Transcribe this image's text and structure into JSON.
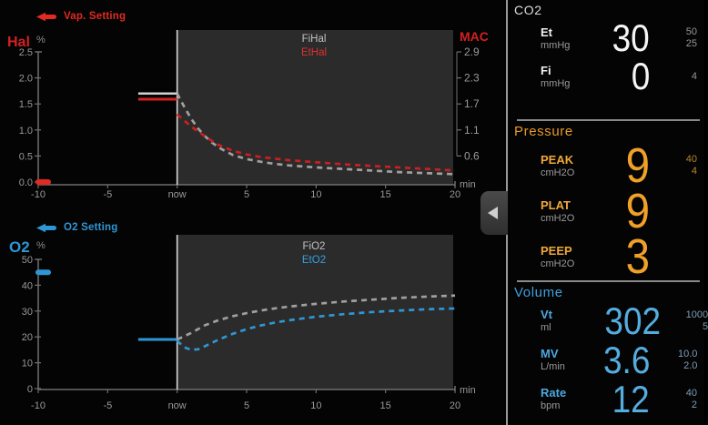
{
  "colors": {
    "red_accent": "#d42020",
    "blue_accent": "#2f96d4",
    "orange_accent": "#f0a028",
    "white_value": "#f5f5f5",
    "gray_trace": "#aaaaaa",
    "tick_text": "#999999",
    "shade_bg": "#2b2b2b",
    "now_line": "#d8d8d8"
  },
  "chart_data": [
    {
      "type": "line",
      "setting_label": "Vap. Setting",
      "gas_label": "Hal",
      "percent_label": "%",
      "x_unit": "min",
      "x_min": -10,
      "x_max": 20,
      "y_min": 0,
      "y_max": 2.5,
      "x_tick_values": [
        -10,
        -5,
        0,
        5,
        10,
        15,
        20
      ],
      "x_tick_labels": [
        "-10",
        "-5",
        "now",
        "5",
        "10",
        "15",
        "20"
      ],
      "y_tick_values": [
        2.5,
        2.0,
        1.5,
        1.0,
        0.5,
        0.0
      ],
      "y_tick_labels": [
        "2.5",
        "2.0",
        "1.5",
        "1.0",
        "0.5",
        "0.0"
      ],
      "right_axis_label": "MAC",
      "right_axis_tick_labels": [
        "2.9",
        "2.3",
        "1.7",
        "1.1",
        "0.6"
      ],
      "legend": [
        {
          "text": "FiHal",
          "color": "#c0c0c0"
        },
        {
          "text": "EtHal",
          "color": "#e03030"
        }
      ],
      "setting_value": 0.0,
      "setting_color": "#e02a22",
      "history": [
        {
          "name": "FiHal",
          "color": "#d0d0d0",
          "width": 2.4,
          "points": [
            [
              -2.8,
              1.7
            ],
            [
              0,
              1.7
            ]
          ]
        },
        {
          "name": "EtHal",
          "color": "#d42020",
          "width": 3,
          "points": [
            [
              -2.8,
              1.59
            ],
            [
              0,
              1.59
            ]
          ]
        }
      ],
      "forecast": [
        {
          "name": "FiHal",
          "color": "#a0a0a0",
          "points": [
            [
              0,
              1.7
            ],
            [
              0.5,
              1.45
            ],
            [
              1,
              1.22
            ],
            [
              1.5,
              1.03
            ],
            [
              2,
              0.88
            ],
            [
              2.5,
              0.76
            ],
            [
              3,
              0.66
            ],
            [
              4,
              0.52
            ],
            [
              5,
              0.44
            ],
            [
              6,
              0.39
            ],
            [
              7,
              0.35
            ],
            [
              8,
              0.32
            ],
            [
              10,
              0.28
            ],
            [
              12,
              0.25
            ],
            [
              14,
              0.22
            ],
            [
              16,
              0.19
            ],
            [
              18,
              0.17
            ],
            [
              20,
              0.15
            ]
          ]
        },
        {
          "name": "EtHal",
          "color": "#cc1f1f",
          "points": [
            [
              0,
              1.3
            ],
            [
              0.5,
              1.18
            ],
            [
              1,
              1.07
            ],
            [
              1.5,
              0.97
            ],
            [
              2,
              0.88
            ],
            [
              2.5,
              0.79
            ],
            [
              3,
              0.71
            ],
            [
              4,
              0.6
            ],
            [
              5,
              0.53
            ],
            [
              6,
              0.48
            ],
            [
              7,
              0.45
            ],
            [
              8,
              0.42
            ],
            [
              10,
              0.38
            ],
            [
              12,
              0.34
            ],
            [
              14,
              0.31
            ],
            [
              16,
              0.28
            ],
            [
              18,
              0.25
            ],
            [
              20,
              0.22
            ]
          ]
        }
      ]
    },
    {
      "type": "line",
      "setting_label": "O2 Setting",
      "gas_label": "O2",
      "percent_label": "%",
      "x_unit": "min",
      "x_min": -10,
      "x_max": 20,
      "y_min": 0,
      "y_max": 50,
      "x_tick_values": [
        -10,
        -5,
        0,
        5,
        10,
        15,
        20
      ],
      "x_tick_labels": [
        "-10",
        "-5",
        "now",
        "5",
        "10",
        "15",
        "20"
      ],
      "y_tick_values": [
        50,
        40,
        30,
        20,
        10,
        0
      ],
      "y_tick_labels": [
        "50",
        "40",
        "30",
        "20",
        "10",
        "0"
      ],
      "right_axis_label": null,
      "right_axis_tick_labels": [],
      "legend": [
        {
          "text": "FiO2",
          "color": "#c0c0c0"
        },
        {
          "text": "EtO2",
          "color": "#35a0e0"
        }
      ],
      "setting_value": 45,
      "setting_color": "#2f96d4",
      "history": [
        {
          "name": "EtO2",
          "color": "#2f96d4",
          "width": 3,
          "points": [
            [
              -2.8,
              19
            ],
            [
              0,
              19
            ]
          ]
        }
      ],
      "forecast": [
        {
          "name": "FiO2",
          "color": "#a0a0a0",
          "points": [
            [
              0,
              19
            ],
            [
              1,
              21.5
            ],
            [
              2,
              24.5
            ],
            [
              3,
              26.5
            ],
            [
              4,
              28
            ],
            [
              5,
              29.2
            ],
            [
              6,
              30.2
            ],
            [
              7,
              31
            ],
            [
              8,
              31.7
            ],
            [
              10,
              32.8
            ],
            [
              12,
              33.7
            ],
            [
              14,
              34.4
            ],
            [
              16,
              35.1
            ],
            [
              18,
              35.6
            ],
            [
              20,
              36
            ]
          ]
        },
        {
          "name": "EtO2",
          "color": "#2f96d4",
          "points": [
            [
              0,
              18.5
            ],
            [
              0.5,
              16
            ],
            [
              1,
              15
            ],
            [
              1.5,
              15.2
            ],
            [
              2,
              16.4
            ],
            [
              3,
              19
            ],
            [
              4,
              21.2
            ],
            [
              5,
              23
            ],
            [
              6,
              24.4
            ],
            [
              7,
              25.5
            ],
            [
              8,
              26.4
            ],
            [
              10,
              27.8
            ],
            [
              12,
              28.8
            ],
            [
              14,
              29.6
            ],
            [
              16,
              30.2
            ],
            [
              18,
              30.7
            ],
            [
              20,
              31
            ]
          ]
        }
      ]
    }
  ],
  "panel": {
    "sections": [
      {
        "title": "CO2",
        "accent": "#f5f5f5",
        "rows": [
          {
            "label": "Et",
            "unit": "mmHg",
            "value": "30",
            "limits": [
              "50",
              "25"
            ]
          },
          {
            "label": "Fi",
            "unit": "mmHg",
            "value": "0",
            "limits": [
              "4"
            ]
          }
        ]
      },
      {
        "title": "Pressure",
        "accent": "#f0a028",
        "rows": [
          {
            "label": "PEAK",
            "unit": "cmH2O",
            "value": "9",
            "limits": [
              "40",
              "4"
            ]
          },
          {
            "label": "PLAT",
            "unit": "cmH2O",
            "value": "9",
            "limits": []
          },
          {
            "label": "PEEP",
            "unit": "cmH2O",
            "value": "3",
            "limits": []
          }
        ]
      },
      {
        "title": "Volume",
        "accent": "#55acdf",
        "rows": [
          {
            "label": "Vt",
            "unit": "ml",
            "value": "302",
            "limits": [
              "1000",
              "5"
            ]
          },
          {
            "label": "MV",
            "unit": "L/min",
            "value": "3.6",
            "limits": [
              "10.0",
              "2.0"
            ]
          },
          {
            "label": "Rate",
            "unit": "bpm",
            "value": "12",
            "limits": [
              "40",
              "2"
            ]
          }
        ]
      }
    ]
  }
}
